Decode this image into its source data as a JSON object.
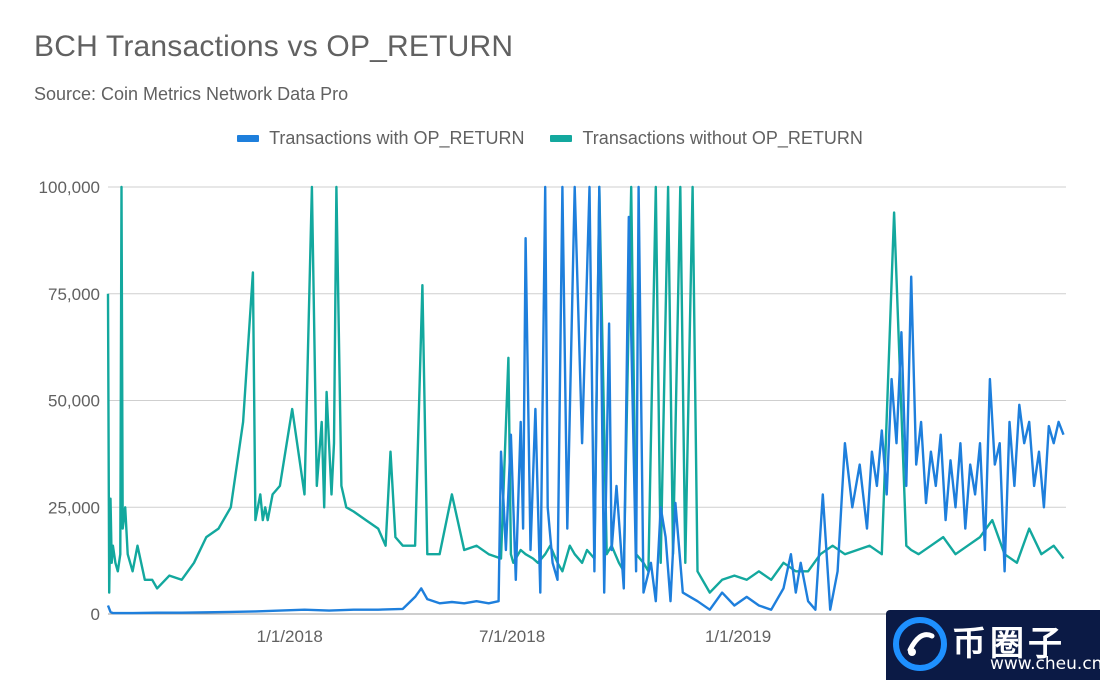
{
  "colors": {
    "with": "#1e7fdc",
    "without": "#13a89e",
    "grid": "#cfcfcf",
    "text": "#616161"
  },
  "chart_data": {
    "type": "line",
    "title": "BCH Transactions vs OP_RETURN",
    "subtitle": "Source: Coin Metrics Network Data Pro",
    "xlabel": "",
    "ylabel": "",
    "ylim": [
      0,
      100000
    ],
    "y_ticks": [
      0,
      25000,
      50000,
      75000,
      100000
    ],
    "y_tick_labels": [
      "0",
      "25,000",
      "50,000",
      "75,000",
      "100,000"
    ],
    "x_range_days": [
      0,
      780
    ],
    "x_ticks": [
      {
        "day": 148,
        "label": "1/1/2018"
      },
      {
        "day": 329,
        "label": "7/1/2018"
      },
      {
        "day": 513,
        "label": "1/1/2019"
      }
    ],
    "legend_position": "top-center",
    "series": [
      {
        "name": "Transactions with OP_RETURN",
        "color": "#1e7fdc",
        "x": [
          0,
          2,
          4,
          20,
          40,
          60,
          80,
          100,
          120,
          140,
          160,
          180,
          200,
          220,
          240,
          250,
          255,
          260,
          270,
          280,
          290,
          300,
          310,
          318,
          320,
          324,
          328,
          332,
          336,
          338,
          340,
          344,
          348,
          352,
          356,
          358,
          362,
          366,
          370,
          374,
          380,
          386,
          392,
          396,
          400,
          404,
          408,
          410,
          414,
          420,
          424,
          430,
          432,
          436,
          442,
          446,
          450,
          454,
          458,
          462,
          468,
          474,
          480,
          490,
          500,
          510,
          520,
          530,
          540,
          550,
          556,
          560,
          564,
          570,
          576,
          582,
          588,
          594,
          600,
          606,
          612,
          618,
          622,
          626,
          630,
          634,
          638,
          642,
          646,
          650,
          654,
          658,
          662,
          666,
          670,
          674,
          678,
          682,
          686,
          690,
          694,
          698,
          702,
          706,
          710,
          714,
          718,
          722,
          726,
          730,
          734,
          738,
          742,
          746,
          750,
          754,
          758,
          762,
          766,
          770,
          774,
          778
        ],
        "values": [
          2000,
          500,
          200,
          200,
          300,
          300,
          400,
          500,
          600,
          800,
          1000,
          800,
          1000,
          1000,
          1200,
          4000,
          6000,
          3500,
          2500,
          2800,
          2500,
          3000,
          2500,
          3000,
          38000,
          15000,
          42000,
          8000,
          45000,
          20000,
          88000,
          15000,
          48000,
          5000,
          100000,
          25000,
          12000,
          8000,
          100000,
          20000,
          100000,
          40000,
          100000,
          10000,
          100000,
          5000,
          68000,
          15000,
          30000,
          6000,
          93000,
          10000,
          100000,
          5000,
          12000,
          3000,
          25000,
          18000,
          3000,
          26000,
          5000,
          4000,
          3000,
          1000,
          5000,
          2000,
          4000,
          2000,
          1000,
          6000,
          14000,
          5000,
          12000,
          3000,
          1000,
          28000,
          1000,
          10000,
          40000,
          25000,
          35000,
          20000,
          38000,
          30000,
          43000,
          28000,
          55000,
          40000,
          66000,
          30000,
          79000,
          35000,
          45000,
          26000,
          38000,
          30000,
          42000,
          22000,
          36000,
          25000,
          40000,
          20000,
          35000,
          28000,
          40000,
          15000,
          55000,
          35000,
          40000,
          10000,
          45000,
          30000,
          49000,
          40000,
          45000,
          30000,
          38000,
          25000,
          44000,
          40000,
          45000,
          42000
        ]
      },
      {
        "name": "Transactions without OP_RETURN",
        "color": "#13a89e",
        "x": [
          0,
          1,
          2,
          3,
          4,
          6,
          8,
          10,
          11,
          12,
          14,
          16,
          20,
          24,
          30,
          36,
          40,
          50,
          60,
          70,
          80,
          90,
          100,
          110,
          118,
          120,
          124,
          126,
          128,
          130,
          134,
          140,
          150,
          160,
          166,
          170,
          174,
          176,
          178,
          182,
          184,
          186,
          190,
          194,
          200,
          210,
          220,
          226,
          230,
          234,
          240,
          250,
          256,
          260,
          270,
          280,
          290,
          300,
          310,
          320,
          326,
          328,
          330,
          336,
          340,
          346,
          350,
          356,
          360,
          366,
          370,
          376,
          380,
          386,
          390,
          396,
          400,
          406,
          410,
          416,
          420,
          426,
          430,
          436,
          440,
          446,
          450,
          456,
          460,
          466,
          470,
          476,
          480,
          490,
          500,
          510,
          520,
          530,
          540,
          550,
          560,
          570,
          580,
          590,
          600,
          610,
          620,
          630,
          640,
          650,
          654,
          660,
          670,
          680,
          690,
          700,
          710,
          720,
          730,
          740,
          750,
          760,
          770,
          778
        ],
        "values": [
          75000,
          5000,
          27000,
          12000,
          16000,
          12000,
          10000,
          14000,
          100000,
          20000,
          25000,
          14000,
          10000,
          16000,
          8000,
          8000,
          6000,
          9000,
          8000,
          12000,
          18000,
          20000,
          25000,
          45000,
          80000,
          22000,
          28000,
          22000,
          25000,
          22000,
          28000,
          30000,
          48000,
          28000,
          100000,
          30000,
          45000,
          25000,
          52000,
          28000,
          40000,
          100000,
          30000,
          25000,
          24000,
          22000,
          20000,
          16000,
          38000,
          18000,
          16000,
          16000,
          77000,
          14000,
          14000,
          28000,
          15000,
          16000,
          14000,
          13000,
          60000,
          14000,
          12000,
          15000,
          14000,
          13000,
          12000,
          14000,
          16000,
          12000,
          10000,
          16000,
          14000,
          12000,
          15000,
          13000,
          100000,
          14000,
          16000,
          12000,
          10000,
          100000,
          14000,
          12000,
          10000,
          100000,
          12000,
          100000,
          14000,
          100000,
          12000,
          100000,
          10000,
          5000,
          8000,
          9000,
          8000,
          10000,
          8000,
          12000,
          10000,
          10000,
          14000,
          16000,
          14000,
          15000,
          16000,
          14000,
          94000,
          16000,
          15000,
          14000,
          16000,
          18000,
          14000,
          16000,
          18000,
          22000,
          14000,
          12000,
          20000,
          14000,
          16000,
          13000
        ]
      }
    ]
  },
  "watermark": {
    "brand": "币圈子",
    "url": "www.cheu.cn"
  }
}
